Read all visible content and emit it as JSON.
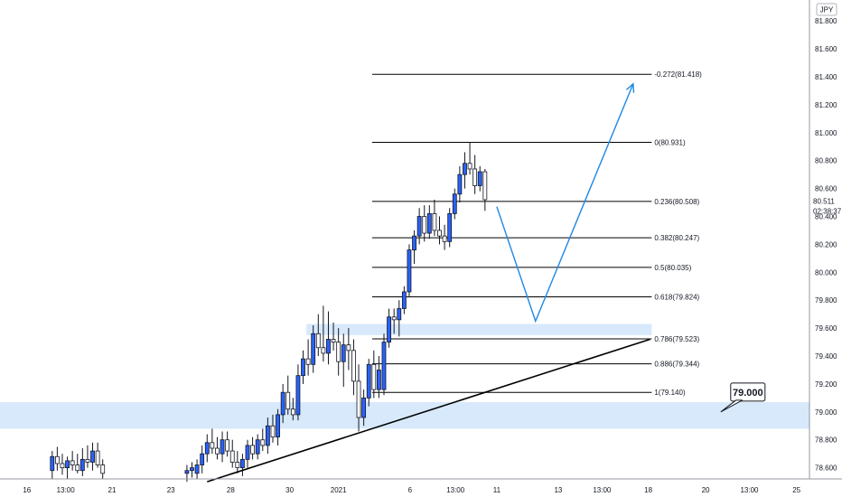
{
  "currency_badge": "JPY",
  "last_price_label": "80.511",
  "countdown_label": "02:38:37",
  "chart_data": {
    "type": "candlestick",
    "y_axis": {
      "range": [
        78.52,
        81.95
      ],
      "ticks": [
        78.6,
        78.8,
        79.0,
        79.2,
        79.4,
        79.6,
        79.8,
        80.0,
        80.2,
        80.4,
        80.6,
        80.8,
        81.0,
        81.2,
        81.4,
        81.6,
        81.8
      ],
      "tick_labels": [
        "78.600",
        "78.800",
        "79.000",
        "79.200",
        "79.400",
        "79.600",
        "79.800",
        "80.000",
        "80.200",
        "80.400",
        "80.600",
        "80.800",
        "81.000",
        "81.200",
        "81.400",
        "81.600",
        "81.800"
      ]
    },
    "x_axis": {
      "range": [
        0,
        100
      ],
      "ticks": [
        3.2,
        7.8,
        13.3,
        20.3,
        27.4,
        34.4,
        40.2,
        48.7,
        54.1,
        59.0,
        66.3,
        71.5,
        77.0,
        83.8,
        89.0,
        94.6
      ],
      "tick_labels": [
        "16",
        "13:00",
        "21",
        "23",
        "28",
        "30",
        "2021",
        "6",
        "13:00",
        "11",
        "13",
        "13:00",
        "18",
        "20",
        "13:00",
        "25"
      ]
    },
    "candles": [
      {
        "x": 6.2,
        "o": 78.58,
        "h": 78.72,
        "l": 78.52,
        "c": 78.68
      },
      {
        "x": 6.8,
        "o": 78.68,
        "h": 78.75,
        "l": 78.58,
        "c": 78.63
      },
      {
        "x": 7.4,
        "o": 78.63,
        "h": 78.7,
        "l": 78.55,
        "c": 78.6
      },
      {
        "x": 8.0,
        "o": 78.6,
        "h": 78.68,
        "l": 78.52,
        "c": 78.65
      },
      {
        "x": 8.6,
        "o": 78.65,
        "h": 78.72,
        "l": 78.58,
        "c": 78.62
      },
      {
        "x": 9.2,
        "o": 78.62,
        "h": 78.7,
        "l": 78.56,
        "c": 78.58
      },
      {
        "x": 9.8,
        "o": 78.58,
        "h": 78.74,
        "l": 78.54,
        "c": 78.66
      },
      {
        "x": 10.4,
        "o": 78.66,
        "h": 78.76,
        "l": 78.6,
        "c": 78.64
      },
      {
        "x": 11.0,
        "o": 78.64,
        "h": 78.78,
        "l": 78.58,
        "c": 78.72
      },
      {
        "x": 11.6,
        "o": 78.72,
        "h": 78.78,
        "l": 78.6,
        "c": 78.62
      },
      {
        "x": 12.2,
        "o": 78.62,
        "h": 78.66,
        "l": 78.52,
        "c": 78.56
      },
      {
        "x": 22.2,
        "o": 78.56,
        "h": 78.62,
        "l": 78.5,
        "c": 78.58
      },
      {
        "x": 22.8,
        "o": 78.58,
        "h": 78.64,
        "l": 78.53,
        "c": 78.6
      },
      {
        "x": 23.4,
        "o": 78.56,
        "h": 78.66,
        "l": 78.52,
        "c": 78.62
      },
      {
        "x": 24.0,
        "o": 78.62,
        "h": 78.76,
        "l": 78.56,
        "c": 78.7
      },
      {
        "x": 24.6,
        "o": 78.7,
        "h": 78.84,
        "l": 78.64,
        "c": 78.78
      },
      {
        "x": 25.2,
        "o": 78.78,
        "h": 78.88,
        "l": 78.7,
        "c": 78.74
      },
      {
        "x": 25.8,
        "o": 78.74,
        "h": 78.82,
        "l": 78.66,
        "c": 78.7
      },
      {
        "x": 26.4,
        "o": 78.7,
        "h": 78.86,
        "l": 78.64,
        "c": 78.8
      },
      {
        "x": 27.0,
        "o": 78.8,
        "h": 78.86,
        "l": 78.68,
        "c": 78.72
      },
      {
        "x": 27.6,
        "o": 78.72,
        "h": 78.8,
        "l": 78.6,
        "c": 78.64
      },
      {
        "x": 28.2,
        "o": 78.64,
        "h": 78.72,
        "l": 78.56,
        "c": 78.6
      },
      {
        "x": 28.8,
        "o": 78.6,
        "h": 78.7,
        "l": 78.54,
        "c": 78.66
      },
      {
        "x": 29.4,
        "o": 78.66,
        "h": 78.8,
        "l": 78.6,
        "c": 78.76
      },
      {
        "x": 30.0,
        "o": 78.76,
        "h": 78.82,
        "l": 78.66,
        "c": 78.7
      },
      {
        "x": 30.6,
        "o": 78.7,
        "h": 78.84,
        "l": 78.66,
        "c": 78.8
      },
      {
        "x": 31.2,
        "o": 78.8,
        "h": 78.88,
        "l": 78.72,
        "c": 78.76
      },
      {
        "x": 31.8,
        "o": 78.76,
        "h": 78.96,
        "l": 78.7,
        "c": 78.9
      },
      {
        "x": 32.4,
        "o": 78.9,
        "h": 78.98,
        "l": 78.78,
        "c": 78.82
      },
      {
        "x": 33.0,
        "o": 78.82,
        "h": 79.02,
        "l": 78.76,
        "c": 78.98
      },
      {
        "x": 33.6,
        "o": 78.98,
        "h": 79.2,
        "l": 78.92,
        "c": 79.14
      },
      {
        "x": 34.2,
        "o": 79.14,
        "h": 79.26,
        "l": 78.98,
        "c": 79.02
      },
      {
        "x": 34.8,
        "o": 79.02,
        "h": 79.1,
        "l": 78.94,
        "c": 78.98
      },
      {
        "x": 35.4,
        "o": 78.98,
        "h": 79.34,
        "l": 78.94,
        "c": 79.26
      },
      {
        "x": 36.0,
        "o": 79.26,
        "h": 79.44,
        "l": 79.2,
        "c": 79.38
      },
      {
        "x": 36.6,
        "o": 79.38,
        "h": 79.52,
        "l": 79.26,
        "c": 79.34
      },
      {
        "x": 37.2,
        "o": 79.34,
        "h": 79.62,
        "l": 79.28,
        "c": 79.56
      },
      {
        "x": 37.8,
        "o": 79.56,
        "h": 79.7,
        "l": 79.4,
        "c": 79.46
      },
      {
        "x": 38.4,
        "o": 79.46,
        "h": 79.76,
        "l": 79.36,
        "c": 79.42
      },
      {
        "x": 39.0,
        "o": 79.42,
        "h": 79.72,
        "l": 79.34,
        "c": 79.52
      },
      {
        "x": 39.6,
        "o": 79.52,
        "h": 79.64,
        "l": 79.44,
        "c": 79.5
      },
      {
        "x": 40.2,
        "o": 79.5,
        "h": 79.6,
        "l": 79.26,
        "c": 79.36
      },
      {
        "x": 40.8,
        "o": 79.36,
        "h": 79.56,
        "l": 79.18,
        "c": 79.48
      },
      {
        "x": 41.4,
        "o": 79.48,
        "h": 79.6,
        "l": 79.3,
        "c": 79.44
      },
      {
        "x": 42.0,
        "o": 79.44,
        "h": 79.52,
        "l": 79.12,
        "c": 79.22
      },
      {
        "x": 42.6,
        "o": 79.22,
        "h": 79.34,
        "l": 78.86,
        "c": 78.96
      },
      {
        "x": 43.2,
        "o": 78.96,
        "h": 79.16,
        "l": 78.9,
        "c": 79.1
      },
      {
        "x": 43.8,
        "o": 79.1,
        "h": 79.38,
        "l": 79.04,
        "c": 79.34
      },
      {
        "x": 44.4,
        "o": 79.34,
        "h": 79.44,
        "l": 79.1,
        "c": 79.16
      },
      {
        "x": 45.0,
        "o": 79.16,
        "h": 79.4,
        "l": 79.1,
        "c": 79.3
      },
      {
        "x": 45.6,
        "o": 79.16,
        "h": 79.56,
        "l": 79.12,
        "c": 79.5
      },
      {
        "x": 46.2,
        "o": 79.5,
        "h": 79.74,
        "l": 79.46,
        "c": 79.68
      },
      {
        "x": 46.8,
        "o": 79.68,
        "h": 79.74,
        "l": 79.56,
        "c": 79.66
      },
      {
        "x": 47.4,
        "o": 79.66,
        "h": 79.8,
        "l": 79.54,
        "c": 79.74
      },
      {
        "x": 48.0,
        "o": 79.74,
        "h": 79.9,
        "l": 79.7,
        "c": 79.86
      },
      {
        "x": 48.6,
        "o": 79.86,
        "h": 80.2,
        "l": 79.82,
        "c": 80.16
      },
      {
        "x": 49.2,
        "o": 80.16,
        "h": 80.3,
        "l": 80.06,
        "c": 80.26
      },
      {
        "x": 49.8,
        "o": 80.26,
        "h": 80.46,
        "l": 80.2,
        "c": 80.4
      },
      {
        "x": 50.4,
        "o": 80.4,
        "h": 80.48,
        "l": 80.22,
        "c": 80.28
      },
      {
        "x": 51.0,
        "o": 80.28,
        "h": 80.48,
        "l": 80.24,
        "c": 80.42
      },
      {
        "x": 51.6,
        "o": 80.42,
        "h": 80.52,
        "l": 80.26,
        "c": 80.3
      },
      {
        "x": 52.2,
        "o": 80.3,
        "h": 80.4,
        "l": 80.2,
        "c": 80.26
      },
      {
        "x": 52.8,
        "o": 80.26,
        "h": 80.34,
        "l": 80.16,
        "c": 80.22
      },
      {
        "x": 53.4,
        "o": 80.22,
        "h": 80.46,
        "l": 80.18,
        "c": 80.42
      },
      {
        "x": 54.0,
        "o": 80.42,
        "h": 80.6,
        "l": 80.38,
        "c": 80.56
      },
      {
        "x": 54.6,
        "o": 80.56,
        "h": 80.76,
        "l": 80.5,
        "c": 80.7
      },
      {
        "x": 55.2,
        "o": 80.7,
        "h": 80.86,
        "l": 80.6,
        "c": 80.78
      },
      {
        "x": 55.8,
        "o": 80.78,
        "h": 80.93,
        "l": 80.7,
        "c": 80.74
      },
      {
        "x": 56.4,
        "o": 80.74,
        "h": 80.84,
        "l": 80.56,
        "c": 80.62
      },
      {
        "x": 57.0,
        "o": 80.62,
        "h": 80.76,
        "l": 80.58,
        "c": 80.72
      },
      {
        "x": 57.6,
        "o": 80.72,
        "h": 80.74,
        "l": 80.44,
        "c": 80.52
      }
    ],
    "fibonacci": {
      "levels": [
        {
          "ratio": "-0.272",
          "price": 81.418,
          "label": "-0.272(81.418)"
        },
        {
          "ratio": "0",
          "price": 80.931,
          "label": "0(80.931)"
        },
        {
          "ratio": "0.236",
          "price": 80.508,
          "label": "0.236(80.508)"
        },
        {
          "ratio": "0.382",
          "price": 80.247,
          "label": "0.382(80.247)"
        },
        {
          "ratio": "0.5",
          "price": 80.035,
          "label": "0.5(80.035)"
        },
        {
          "ratio": "0.618",
          "price": 79.824,
          "label": "0.618(79.824)"
        },
        {
          "ratio": "0.786",
          "price": 79.523,
          "label": "0.786(79.523)"
        },
        {
          "ratio": "0.886",
          "price": 79.344,
          "label": "0.886(79.344)"
        },
        {
          "ratio": "1",
          "price": 79.14,
          "label": "1(79.140)"
        }
      ],
      "x_start": 44.2,
      "x_end": 77.4
    },
    "zones": [
      {
        "y_low": 78.88,
        "y_high": 79.07,
        "x_start": 0,
        "x_end": 96.2
      },
      {
        "y_low": 79.55,
        "y_high": 79.63,
        "x_start": 36.4,
        "x_end": 77.4
      }
    ],
    "trendline": {
      "x1": 24.6,
      "y1": 78.5,
      "x2": 77.2,
      "y2": 79.52
    },
    "projection": [
      {
        "x": 59.0,
        "y": 80.47
      },
      {
        "x": 63.6,
        "y": 79.65
      },
      {
        "x": 75.2,
        "y": 81.35
      }
    ],
    "callout": {
      "label": "79.000",
      "price": 79.0,
      "x_anchor": 85.6
    },
    "last_price": 80.511,
    "colors": {
      "bull_candle": "#2962ff",
      "bear_candle": "#ffffff",
      "candle_outline": "#131722",
      "zone": "#d7e9fb",
      "projection": "#1e88e5",
      "trendline": "#000000",
      "fib_line": "#000000"
    }
  }
}
